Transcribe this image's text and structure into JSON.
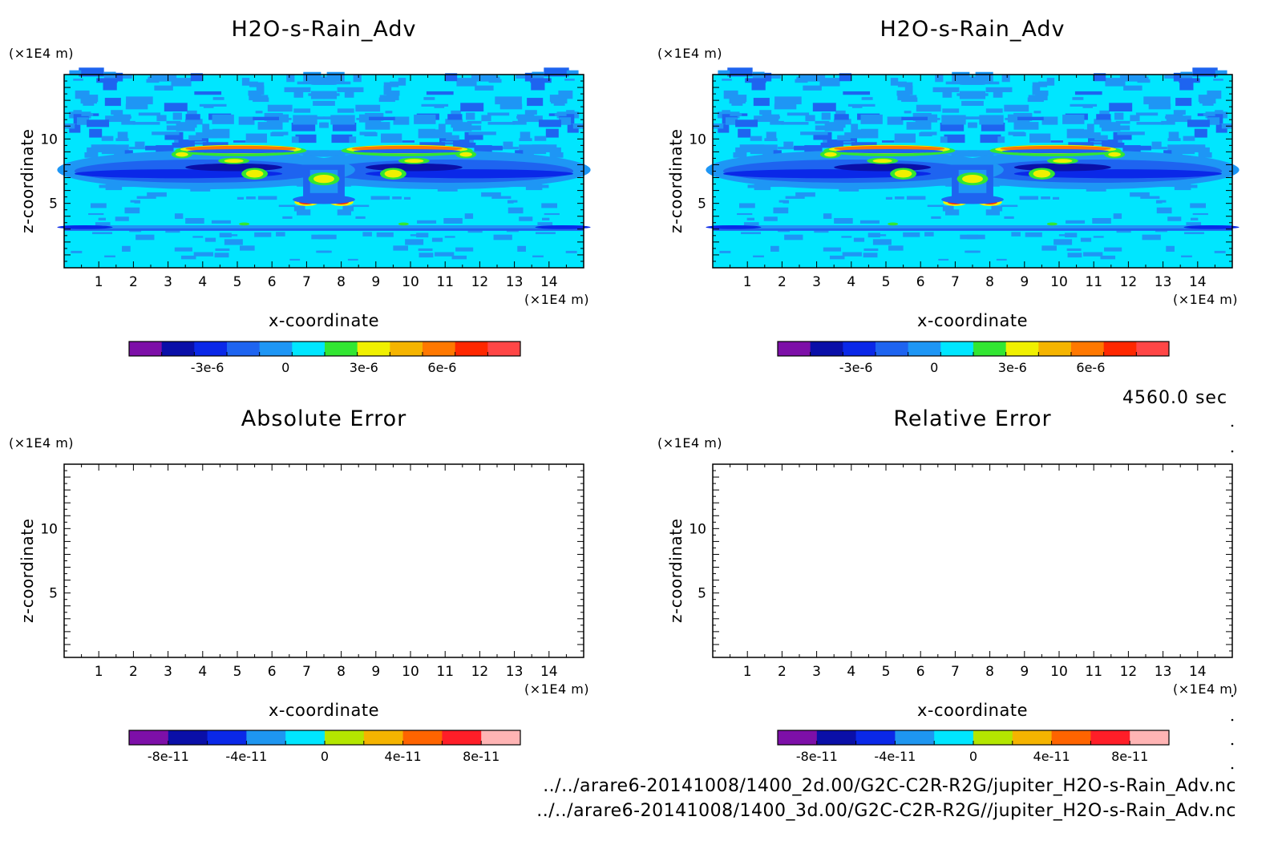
{
  "chart_data": [
    {
      "type": "heatmap",
      "title": "H2O-s-Rain_Adv",
      "xlabel": "x-coordinate",
      "ylabel": "z-coordinate",
      "x_unit": "(×1E4 m)",
      "z_unit": "(×1E4 m)",
      "xlim": [
        0,
        15
      ],
      "zlim": [
        0,
        15
      ],
      "x_ticks": [
        "1",
        "2",
        "3",
        "4",
        "5",
        "6",
        "7",
        "8",
        "9",
        "10",
        "11",
        "12",
        "13",
        "14"
      ],
      "z_ticks": [
        "5",
        "10"
      ],
      "colorbar": {
        "colors": [
          "#7d0fa8",
          "#0a0fa8",
          "#0a28e8",
          "#1e64f0",
          "#1e96f5",
          "#00e6ff",
          "#32e632",
          "#f0f000",
          "#f5b400",
          "#ff7800",
          "#ff2800",
          "#ff4646"
        ],
        "labels": [
          "-3e-6",
          "0",
          "3e-6",
          "6e-6"
        ],
        "label_values": [
          -3e-06,
          0,
          3e-06,
          6e-06
        ],
        "range": [
          -6e-06,
          9e-06
        ]
      }
    },
    {
      "type": "heatmap",
      "title": "H2O-s-Rain_Adv",
      "xlabel": "x-coordinate",
      "ylabel": "z-coordinate",
      "x_unit": "(×1E4 m)",
      "z_unit": "(×1E4 m)",
      "xlim": [
        0,
        15
      ],
      "zlim": [
        0,
        15
      ],
      "x_ticks": [
        "1",
        "2",
        "3",
        "4",
        "5",
        "6",
        "7",
        "8",
        "9",
        "10",
        "11",
        "12",
        "13",
        "14"
      ],
      "z_ticks": [
        "5",
        "10"
      ],
      "colorbar": {
        "colors": [
          "#7d0fa8",
          "#0a0fa8",
          "#0a28e8",
          "#1e64f0",
          "#1e96f5",
          "#00e6ff",
          "#32e632",
          "#f0f000",
          "#f5b400",
          "#ff7800",
          "#ff2800",
          "#ff4646"
        ],
        "labels": [
          "-3e-6",
          "0",
          "3e-6",
          "6e-6"
        ],
        "label_values": [
          -3e-06,
          0,
          3e-06,
          6e-06
        ],
        "range": [
          -6e-06,
          9e-06
        ]
      }
    },
    {
      "type": "heatmap",
      "title": "Absolute Error",
      "xlabel": "x-coordinate",
      "ylabel": "z-coordinate",
      "x_unit": "(×1E4 m)",
      "z_unit": "(×1E4 m)",
      "xlim": [
        0,
        15
      ],
      "zlim": [
        0,
        15
      ],
      "x_ticks": [
        "1",
        "2",
        "3",
        "4",
        "5",
        "6",
        "7",
        "8",
        "9",
        "10",
        "11",
        "12",
        "13",
        "14"
      ],
      "z_ticks": [
        "5",
        "10"
      ],
      "colorbar": {
        "colors": [
          "#7d0fa8",
          "#0a0fa8",
          "#0a28e8",
          "#1e96f0",
          "#00e6ff",
          "#b4e600",
          "#f5b400",
          "#ff6400",
          "#ff1e28",
          "#ffb4b4"
        ],
        "labels": [
          "-8e-11",
          "-4e-11",
          "0",
          "4e-11",
          "8e-11"
        ],
        "label_values": [
          -8e-11,
          -4e-11,
          0,
          4e-11,
          8e-11
        ],
        "range": [
          -1e-10,
          1e-10
        ]
      }
    },
    {
      "type": "heatmap",
      "title": "Relative Error",
      "xlabel": "x-coordinate",
      "ylabel": "z-coordinate",
      "x_unit": "(×1E4 m)",
      "z_unit": "(×1E4 m)",
      "xlim": [
        0,
        15
      ],
      "zlim": [
        0,
        15
      ],
      "x_ticks": [
        "1",
        "2",
        "3",
        "4",
        "5",
        "6",
        "7",
        "8",
        "9",
        "10",
        "11",
        "12",
        "13",
        "14"
      ],
      "z_ticks": [
        "5",
        "10"
      ],
      "colorbar": {
        "colors": [
          "#7d0fa8",
          "#0a0fa8",
          "#0a28e8",
          "#1e96f0",
          "#00e6ff",
          "#b4e600",
          "#f5b400",
          "#ff6400",
          "#ff1e28",
          "#ffb4b4"
        ],
        "labels": [
          "-8e-11",
          "-4e-11",
          "0",
          "4e-11",
          "8e-11"
        ],
        "label_values": [
          -8e-11,
          -4e-11,
          0,
          4e-11,
          8e-11
        ],
        "range": [
          -1e-10,
          1e-10
        ]
      }
    }
  ],
  "time_label": "4560.0 sec",
  "file_paths": [
    "../../arare6-20141008/1400_2d.00/G2C-C2R-R2G/jupiter_H2O-s-Rain_Adv.nc",
    "../../arare6-20141008/1400_3d.00/G2C-C2R-R2G//jupiter_H2O-s-Rain_Adv.nc"
  ]
}
